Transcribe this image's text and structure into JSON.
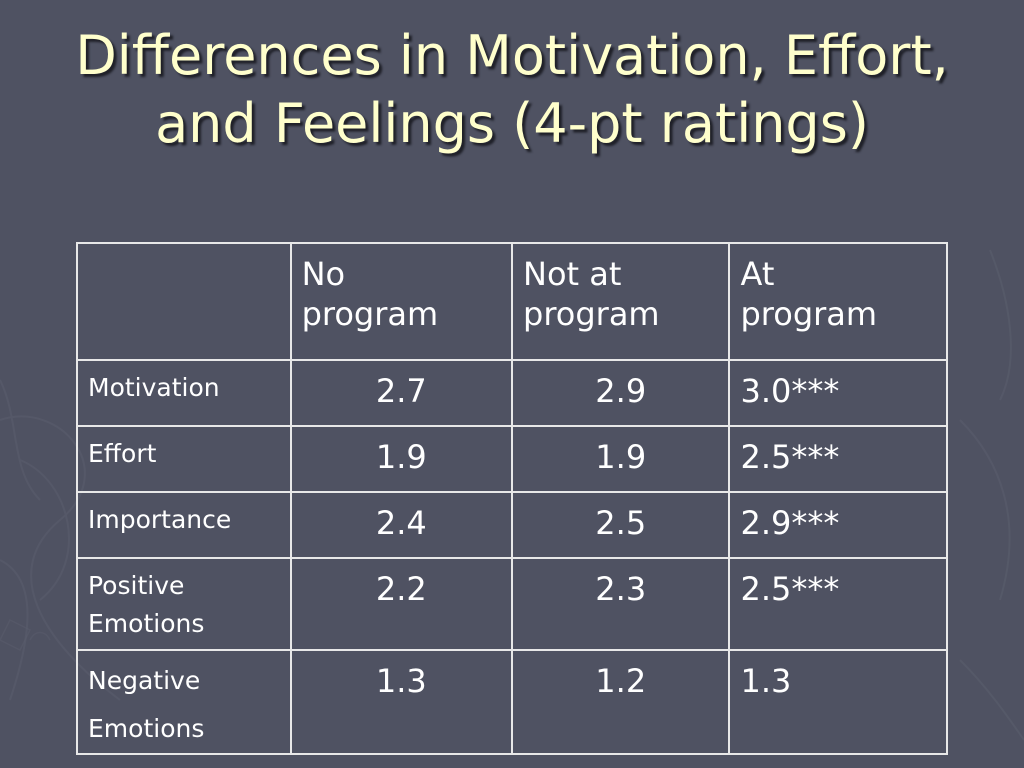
{
  "slide": {
    "title_line1": "Differences in Motivation, Effort,",
    "title_line2": "and Feelings (4-pt ratings)"
  },
  "table": {
    "corner": "",
    "columns": [
      {
        "line1": "No",
        "line2": "program"
      },
      {
        "line1": "Not at",
        "line2": "program"
      },
      {
        "line1": "At",
        "line2": "program"
      }
    ],
    "rows": [
      {
        "label": [
          "Motivation"
        ],
        "values": [
          "2.7",
          "2.9",
          "3.0***"
        ]
      },
      {
        "label": [
          "Effort"
        ],
        "values": [
          "1.9",
          "1.9",
          "2.5***"
        ]
      },
      {
        "label": [
          "Importance"
        ],
        "values": [
          "2.4",
          "2.5",
          "2.9***"
        ]
      },
      {
        "label": [
          "Positive",
          "Emotions"
        ],
        "values": [
          "2.2",
          "2.3",
          "2.5***"
        ]
      },
      {
        "label": [
          "Negative",
          "Emotions"
        ],
        "values": [
          "1.3",
          "1.2",
          "1.3"
        ]
      }
    ]
  },
  "colors": {
    "background": "#4f5262",
    "title": "#ffffcc",
    "table_text": "#ffffff",
    "table_border": "#e8e8e8"
  }
}
